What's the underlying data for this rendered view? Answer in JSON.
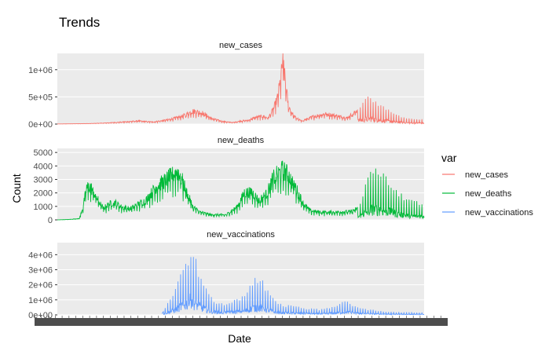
{
  "chart_data": {
    "type": "line",
    "title": "Trends",
    "xlabel": "Date",
    "ylabel": "Count",
    "facet_by": "var",
    "legend": {
      "title": "var",
      "position": "right",
      "entries": [
        "new_cases",
        "new_deaths",
        "new_vaccinations"
      ]
    },
    "x_tick_labels_overlapping": true,
    "x_range_index": [
      0,
      1000
    ],
    "panels": [
      {
        "name": "new_cases",
        "color": "#F8766D",
        "ylim": [
          0,
          1300000
        ],
        "yticks": [
          0,
          500000,
          1000000
        ],
        "ytick_labels": [
          "0e+00",
          "5e+05",
          "1e+06"
        ],
        "envelope": [
          [
            0,
            2000
          ],
          [
            90,
            10000
          ],
          [
            130,
            20000
          ],
          [
            180,
            40000
          ],
          [
            220,
            60000
          ],
          [
            260,
            40000
          ],
          [
            300,
            80000
          ],
          [
            340,
            150000
          ],
          [
            370,
            250000
          ],
          [
            395,
            220000
          ],
          [
            420,
            110000
          ],
          [
            450,
            50000
          ],
          [
            480,
            30000
          ],
          [
            500,
            60000
          ],
          [
            520,
            70000
          ],
          [
            540,
            130000
          ],
          [
            560,
            150000
          ],
          [
            575,
            120000
          ],
          [
            590,
            300000
          ],
          [
            600,
            500000
          ],
          [
            610,
            900000
          ],
          [
            615,
            1280000
          ],
          [
            620,
            900000
          ],
          [
            630,
            350000
          ],
          [
            645,
            150000
          ],
          [
            665,
            60000
          ],
          [
            700,
            150000
          ],
          [
            730,
            200000
          ],
          [
            760,
            160000
          ],
          [
            790,
            120000
          ],
          [
            815,
            250000
          ],
          [
            835,
            400000
          ],
          [
            850,
            480000
          ],
          [
            870,
            400000
          ],
          [
            890,
            300000
          ],
          [
            920,
            180000
          ],
          [
            960,
            100000
          ],
          [
            1000,
            80000
          ]
        ],
        "spiky_from": 820
      },
      {
        "name": "new_deaths",
        "color": "#00BA38",
        "ylim": [
          0,
          5300
        ],
        "yticks": [
          0,
          1000,
          2000,
          3000,
          4000,
          5000
        ],
        "ytick_labels": [
          "0",
          "1000",
          "2000",
          "3000",
          "4000",
          "5000"
        ],
        "envelope": [
          [
            0,
            0
          ],
          [
            30,
            30
          ],
          [
            60,
            100
          ],
          [
            70,
            1000
          ],
          [
            80,
            2500
          ],
          [
            90,
            2600
          ],
          [
            110,
            1600
          ],
          [
            125,
            900
          ],
          [
            140,
            1200
          ],
          [
            155,
            1400
          ],
          [
            175,
            1000
          ],
          [
            200,
            900
          ],
          [
            240,
            1500
          ],
          [
            270,
            2600
          ],
          [
            300,
            3200
          ],
          [
            320,
            3600
          ],
          [
            330,
            3800
          ],
          [
            340,
            3100
          ],
          [
            355,
            2000
          ],
          [
            370,
            1000
          ],
          [
            390,
            600
          ],
          [
            420,
            400
          ],
          [
            460,
            400
          ],
          [
            490,
            1000
          ],
          [
            510,
            2100
          ],
          [
            530,
            2200
          ],
          [
            550,
            1500
          ],
          [
            570,
            2000
          ],
          [
            590,
            3300
          ],
          [
            615,
            3900
          ],
          [
            630,
            3500
          ],
          [
            650,
            2500
          ],
          [
            670,
            1300
          ],
          [
            690,
            700
          ],
          [
            720,
            600
          ],
          [
            760,
            600
          ],
          [
            800,
            650
          ],
          [
            820,
            900
          ],
          [
            840,
            2500
          ],
          [
            860,
            3700
          ],
          [
            880,
            3600
          ],
          [
            900,
            3000
          ],
          [
            930,
            2000
          ],
          [
            960,
            1400
          ],
          [
            1000,
            1200
          ]
        ],
        "spiky_from": 820
      },
      {
        "name": "new_vaccinations",
        "color": "#619CFF",
        "ylim": [
          0,
          4800000
        ],
        "yticks": [
          0,
          1000000,
          2000000,
          3000000,
          4000000
        ],
        "ytick_labels": [
          "0e+00",
          "1e+06",
          "2e+06",
          "3e+06",
          "4e+06"
        ],
        "start_index": 285,
        "envelope": [
          [
            285,
            100000
          ],
          [
            300,
            700000
          ],
          [
            320,
            1500000
          ],
          [
            340,
            2800000
          ],
          [
            355,
            3600000
          ],
          [
            365,
            4600000
          ],
          [
            375,
            3700000
          ],
          [
            390,
            2400000
          ],
          [
            410,
            1500000
          ],
          [
            425,
            900000
          ],
          [
            450,
            700000
          ],
          [
            480,
            900000
          ],
          [
            510,
            1200000
          ],
          [
            530,
            2000000
          ],
          [
            545,
            2400000
          ],
          [
            560,
            2100000
          ],
          [
            580,
            1300000
          ],
          [
            600,
            700000
          ],
          [
            630,
            600000
          ],
          [
            660,
            500000
          ],
          [
            690,
            400000
          ],
          [
            720,
            350000
          ],
          [
            760,
            550000
          ],
          [
            780,
            900000
          ],
          [
            795,
            800000
          ],
          [
            820,
            500000
          ],
          [
            850,
            350000
          ],
          [
            900,
            200000
          ],
          [
            950,
            180000
          ],
          [
            1000,
            150000
          ]
        ],
        "spiky_from": 290
      }
    ]
  }
}
